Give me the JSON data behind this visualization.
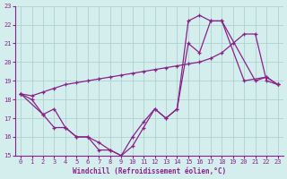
{
  "xlabel": "Windchill (Refroidissement éolien,°C)",
  "background_color": "#d4eeee",
  "line_color": "#882288",
  "grid_color": "#aacccc",
  "xlim": [
    -0.5,
    23.5
  ],
  "ylim": [
    15,
    23
  ],
  "xticks": [
    0,
    1,
    2,
    3,
    4,
    5,
    6,
    7,
    8,
    9,
    10,
    11,
    12,
    13,
    14,
    15,
    16,
    17,
    18,
    19,
    20,
    21,
    22,
    23
  ],
  "yticks": [
    15,
    16,
    17,
    18,
    19,
    20,
    21,
    22,
    23
  ],
  "line1_x": [
    0,
    1,
    2,
    3,
    4,
    5,
    6,
    7,
    8,
    9,
    10,
    11,
    12,
    13,
    14,
    15,
    16,
    17,
    18,
    19,
    20,
    21,
    22,
    23
  ],
  "line1_y": [
    18.3,
    18.2,
    18.4,
    18.6,
    18.8,
    18.9,
    19.0,
    19.1,
    19.2,
    19.3,
    19.4,
    19.5,
    19.6,
    19.7,
    19.8,
    19.9,
    20.0,
    20.2,
    20.5,
    21.0,
    21.5,
    21.5,
    19.0,
    18.8
  ],
  "line2_x": [
    0,
    2,
    3,
    4,
    5,
    6,
    7,
    8,
    9,
    10,
    11,
    12,
    13,
    14,
    15,
    16,
    17,
    18,
    21,
    22,
    23
  ],
  "line2_y": [
    18.3,
    17.2,
    17.5,
    16.5,
    16.0,
    16.0,
    15.7,
    15.3,
    15.0,
    16.0,
    16.8,
    17.5,
    17.0,
    17.5,
    21.0,
    20.5,
    22.2,
    22.2,
    19.0,
    19.2,
    18.8
  ],
  "line3_x": [
    0,
    1,
    2,
    3,
    4,
    5,
    6,
    7,
    8,
    9,
    10,
    11,
    12,
    13,
    14,
    15,
    16,
    17,
    18,
    20,
    22,
    23
  ],
  "line3_y": [
    18.3,
    18.0,
    17.2,
    16.5,
    16.5,
    16.0,
    16.0,
    15.3,
    15.3,
    15.0,
    15.5,
    16.5,
    17.5,
    17.0,
    17.5,
    22.2,
    22.5,
    22.2,
    22.2,
    19.0,
    19.2,
    18.8
  ]
}
